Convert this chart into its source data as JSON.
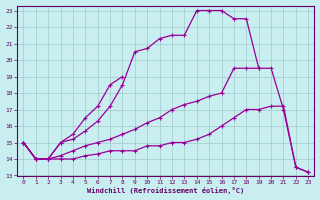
{
  "xlabel": "Windchill (Refroidissement éolien,°C)",
  "background_color": "#c8eef0",
  "grid_color": "#b0c8cc",
  "line_color": "#990099",
  "xlim": [
    -0.5,
    23.5
  ],
  "ylim": [
    13,
    23.3
  ],
  "xticks": [
    0,
    1,
    2,
    3,
    4,
    5,
    6,
    7,
    8,
    9,
    10,
    11,
    12,
    13,
    14,
    15,
    16,
    17,
    18,
    19,
    20,
    21,
    22,
    23
  ],
  "yticks": [
    13,
    14,
    15,
    16,
    17,
    18,
    19,
    20,
    21,
    22,
    23
  ],
  "curve1_x": [
    0,
    1,
    2,
    3,
    4,
    5,
    6,
    7,
    8,
    9,
    10,
    11,
    12,
    13,
    14,
    15,
    16,
    17,
    18,
    19
  ],
  "curve1_y": [
    15,
    14,
    14,
    15,
    15.2,
    15.7,
    16.3,
    17.2,
    18.5,
    20.5,
    20.7,
    21.3,
    21.5,
    21.5,
    23.0,
    23.0,
    23.0,
    22.5,
    22.5,
    19.5
  ],
  "curve2_x": [
    0,
    1,
    2,
    3,
    4,
    5,
    6,
    7,
    8
  ],
  "curve2_y": [
    15,
    14,
    14,
    15,
    15.5,
    16.5,
    17.2,
    18.5,
    19.0
  ],
  "curve3_x": [
    0,
    1,
    2,
    3,
    4,
    5,
    6,
    7,
    8,
    9,
    10,
    11,
    12,
    13,
    14,
    15,
    16,
    17,
    18,
    19,
    20,
    21,
    22,
    23
  ],
  "curve3_y": [
    15,
    14,
    14,
    14.2,
    14.5,
    14.8,
    15.0,
    15.2,
    15.5,
    15.8,
    16.2,
    16.5,
    17.0,
    17.3,
    17.5,
    17.8,
    18.0,
    19.5,
    19.5,
    19.5,
    19.5,
    17.0,
    13.5,
    13.2
  ],
  "curve4_x": [
    0,
    1,
    2,
    3,
    4,
    5,
    6,
    7,
    8,
    9,
    10,
    11,
    12,
    13,
    14,
    15,
    16,
    17,
    18,
    19,
    20,
    21,
    22,
    23
  ],
  "curve4_y": [
    15,
    14,
    14,
    14,
    14,
    14.2,
    14.3,
    14.5,
    14.5,
    14.5,
    14.8,
    14.8,
    15.0,
    15.0,
    15.2,
    15.5,
    16.0,
    16.5,
    17.0,
    17.0,
    17.2,
    17.2,
    13.5,
    13.2
  ]
}
